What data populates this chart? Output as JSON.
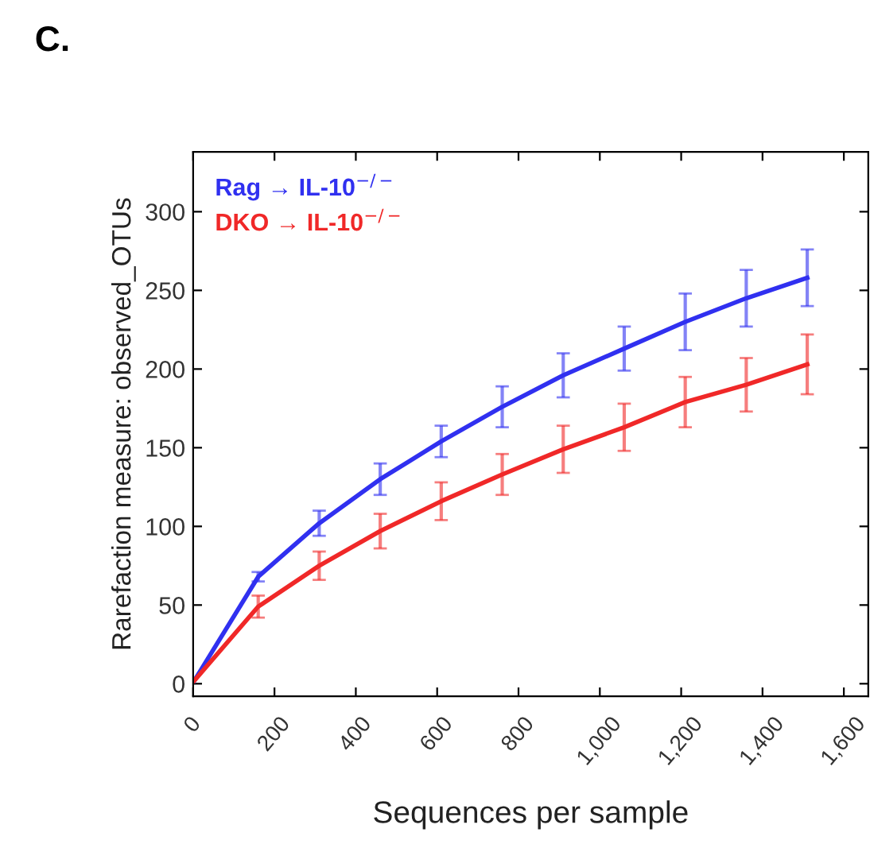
{
  "chart_data": {
    "type": "line",
    "title": "C.",
    "xlabel": "Sequences per sample",
    "ylabel": "Rarefaction measure: observed_OTUs",
    "x": [
      3,
      160,
      310,
      460,
      610,
      760,
      910,
      1060,
      1210,
      1360,
      1510
    ],
    "series": [
      {
        "name": "Rag → IL-10$^{−/−}$",
        "color": "#3030f0",
        "values": [
          2,
          68,
          102,
          130,
          154,
          176,
          196,
          213,
          230,
          245,
          258
        ],
        "errors": [
          null,
          3,
          8,
          10,
          10,
          13,
          14,
          14,
          18,
          18,
          18
        ]
      },
      {
        "name": "DKO → IL-10$^{−/−}$",
        "color": "#f02828",
        "values": [
          2,
          49,
          75,
          97,
          116,
          133,
          149,
          163,
          179,
          190,
          203
        ],
        "errors": [
          null,
          7,
          9,
          11,
          12,
          13,
          15,
          15,
          16,
          17,
          19
        ]
      }
    ],
    "xlim": [
      0,
      1660
    ],
    "ylim": [
      -8,
      338
    ],
    "xticks": [
      0,
      200,
      400,
      600,
      800,
      {
        "value": 1000,
        "label": "1,000"
      },
      {
        "value": 1200,
        "label": "1,200"
      },
      {
        "value": 1400,
        "label": "1,400"
      },
      {
        "value": 1600,
        "label": "1,600"
      }
    ],
    "yticks": [
      0,
      50,
      100,
      150,
      200,
      250,
      300
    ],
    "grid": false,
    "legend": "top left",
    "marker": "none",
    "line_style": "solid"
  }
}
